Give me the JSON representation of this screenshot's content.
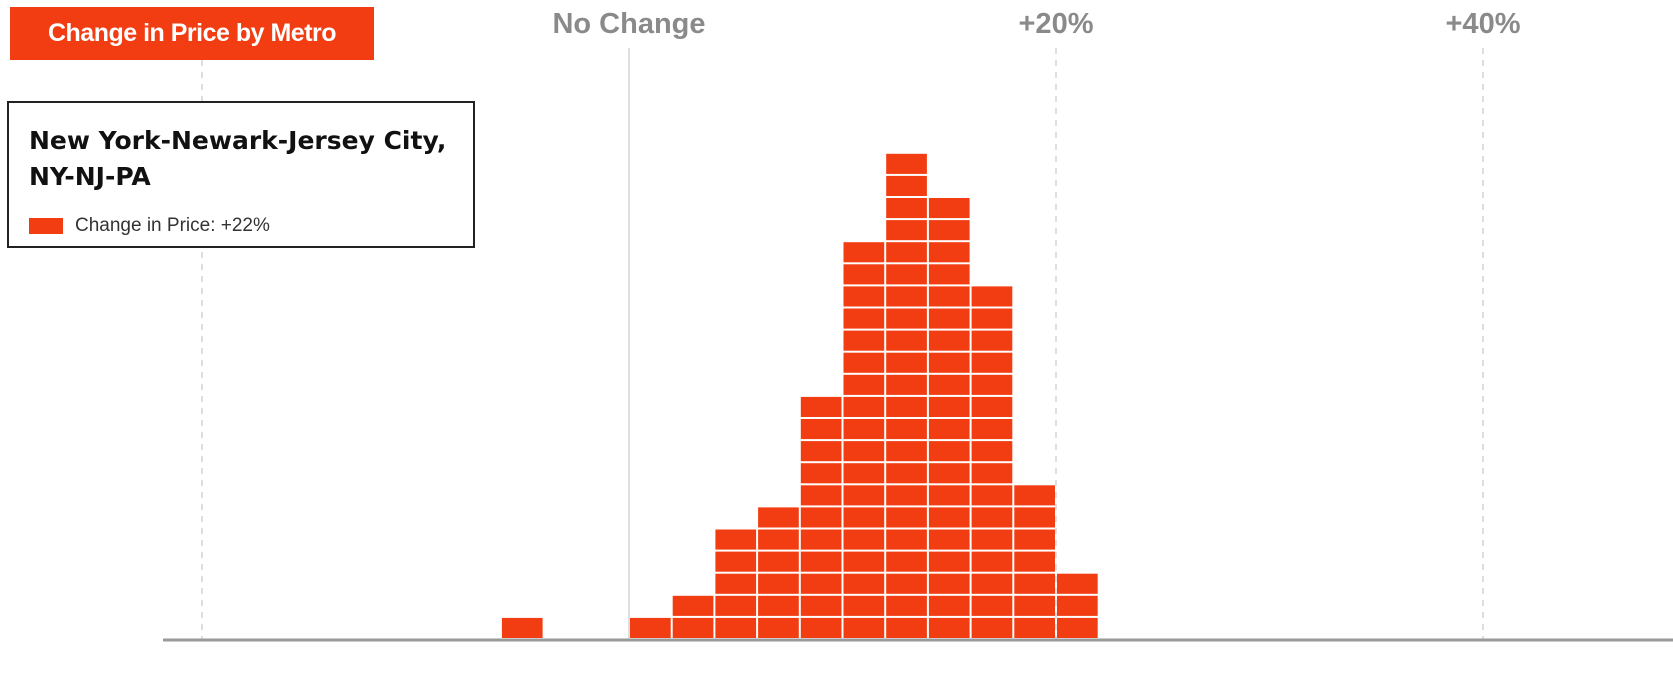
{
  "title": "Change in Price by Metro",
  "tooltip": {
    "metro": "New York-Newark-Jersey City, NY-NJ-PA",
    "legend_label": "Change in Price: +22%"
  },
  "colors": {
    "accent": "#f23c12",
    "axis_text": "#8a8a8a",
    "gridline": "#c8c8c8"
  },
  "chart_data": {
    "type": "bar",
    "subtype": "unit-histogram",
    "x_ticks": [
      {
        "value": 0,
        "label": "No Change"
      },
      {
        "value": 20,
        "label": "+20%"
      },
      {
        "value": 40,
        "label": "+40%"
      }
    ],
    "xlim": [
      -20,
      44
    ],
    "bin_width": 2,
    "bins": [
      {
        "start": -6,
        "count": 1
      },
      {
        "start": 0,
        "count": 1
      },
      {
        "start": 2,
        "count": 2
      },
      {
        "start": 4,
        "count": 5
      },
      {
        "start": 6,
        "count": 6
      },
      {
        "start": 8,
        "count": 11
      },
      {
        "start": 10,
        "count": 18
      },
      {
        "start": 12,
        "count": 22
      },
      {
        "start": 14,
        "count": 20
      },
      {
        "start": 16,
        "count": 16
      },
      {
        "start": 18,
        "count": 7
      },
      {
        "start": 20,
        "count": 3
      }
    ],
    "highlight": {
      "value": 22,
      "bin_start": 20,
      "unit_index": 3
    },
    "grid": true
  }
}
